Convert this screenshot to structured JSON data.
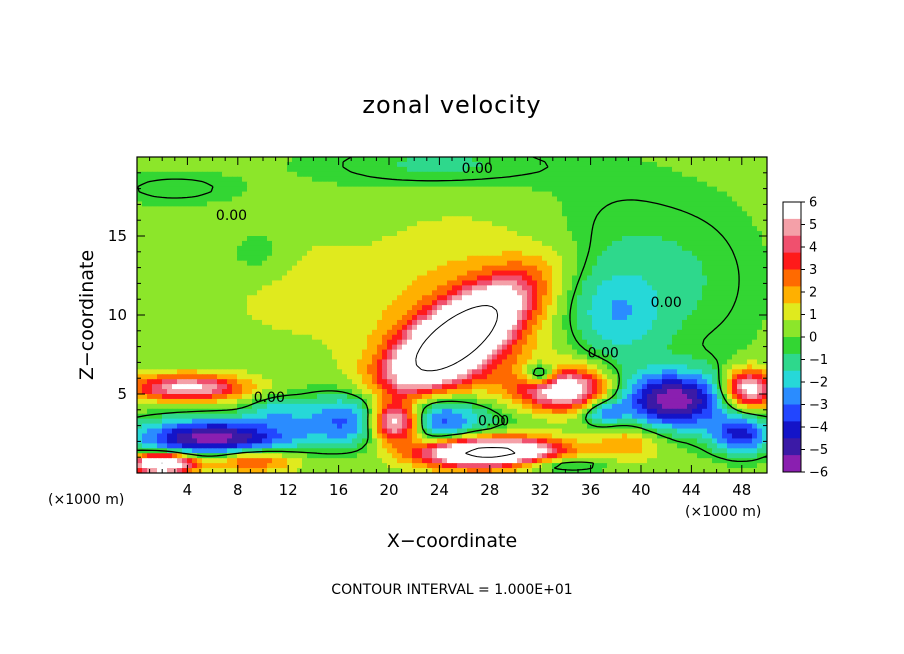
{
  "chart_data": {
    "type": "heatmap",
    "title": "zonal velocity",
    "xlabel": "X−coordinate",
    "ylabel": "Z−coordinate",
    "x_unit_left": "(×1000 m)",
    "x_unit_right": "(×1000 m)",
    "xlim": [
      0,
      50
    ],
    "ylim": [
      0,
      20
    ],
    "x_ticks": [
      4,
      8,
      12,
      16,
      20,
      24,
      28,
      32,
      36,
      40,
      44,
      48
    ],
    "y_ticks": [
      5,
      10,
      15
    ],
    "colorbar": {
      "min": -6,
      "max": 6,
      "ticks": [
        6,
        5,
        4,
        3,
        2,
        1,
        0,
        -1,
        -2,
        -3,
        -4,
        -5,
        -6
      ],
      "colors": [
        "#8a1fb0",
        "#3b1aa6",
        "#1414c8",
        "#2246ff",
        "#2a8cff",
        "#26d8d8",
        "#2ed88c",
        "#33d633",
        "#8ce62a",
        "#e0ea1e",
        "#ffb000",
        "#ff6a00",
        "#ff1a1a",
        "#f0506e",
        "#f4a0a8",
        "#ffffff"
      ]
    },
    "contour_labels": [
      {
        "text": "0.00",
        "x": 27,
        "y": 19.0
      },
      {
        "text": "0.00",
        "x": 7.5,
        "y": 16.0
      },
      {
        "text": "0.00",
        "x": 42.0,
        "y": 10.5
      },
      {
        "text": "0.00",
        "x": 37.0,
        "y": 7.3
      },
      {
        "text": "0.00",
        "x": 10.5,
        "y": 4.5
      },
      {
        "text": "0.00",
        "x": 28.3,
        "y": 3.0
      }
    ],
    "footnote": "CONTOUR INTERVAL =  1.000E+01"
  }
}
